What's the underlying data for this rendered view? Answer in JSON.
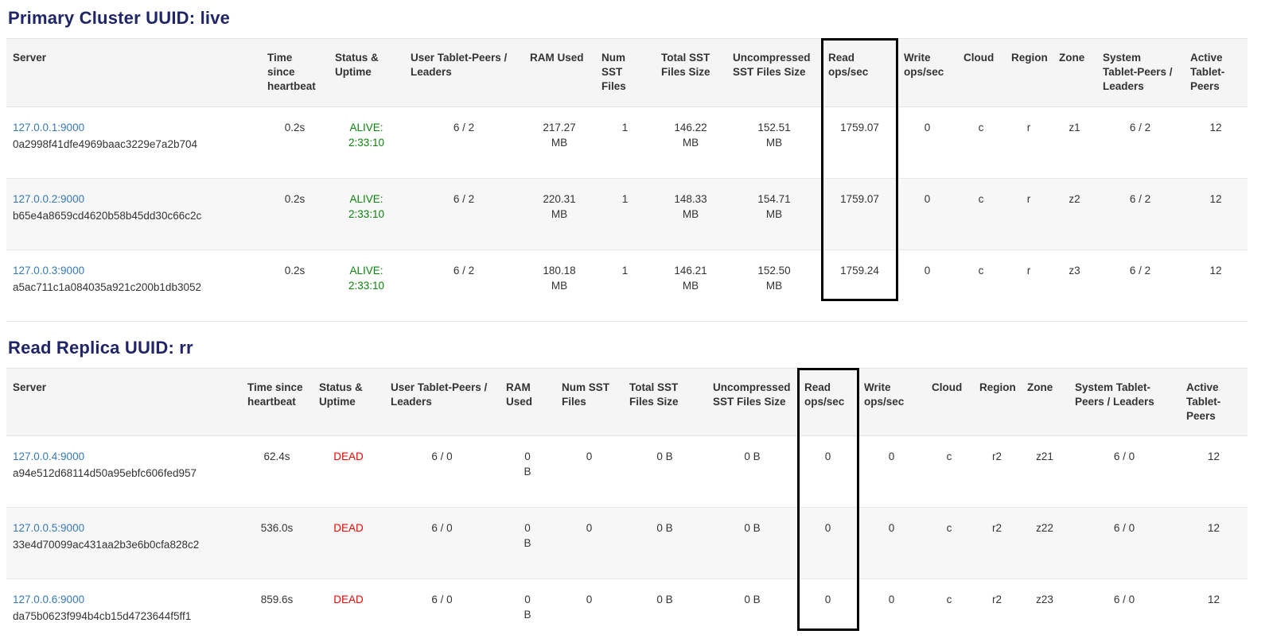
{
  "colors": {
    "title": "#1f2566",
    "link": "#3579b8",
    "alive": "#0a840a",
    "dead": "#ff0000",
    "highlight_border": "#000000",
    "header_background": "#f5f5f5",
    "stripe_background": "#f7f7f7"
  },
  "tables": [
    {
      "title": "Primary Cluster UUID: live",
      "highlighted_column": "Read ops/sec",
      "headers": [
        "Server",
        "Time since heartbeat",
        "Status & Uptime",
        "User Tablet-Peers / Leaders",
        "RAM Used",
        "Num SST Files",
        "Total SST Files Size",
        "Uncompressed SST Files Size",
        "Read ops/sec",
        "Write ops/sec",
        "Cloud",
        "Region",
        "Zone",
        "System Tablet-Peers / Leaders",
        "Active Tablet-Peers"
      ],
      "rows": [
        {
          "server": "127.0.0.1:9000",
          "uuid": "0a2998f41dfe4969baac3229e7a2b704",
          "status": "alive",
          "cells": [
            "0.2s",
            "ALIVE:\n2:33:10",
            "6 / 2",
            "217.27\nMB",
            "1",
            "146.22\nMB",
            "152.51\nMB",
            "1759.07",
            "0",
            "c",
            "r",
            "z1",
            "6 / 2",
            "12"
          ]
        },
        {
          "server": "127.0.0.2:9000",
          "uuid": "b65e4a8659cd4620b58b45dd30c66c2c",
          "status": "alive",
          "cells": [
            "0.2s",
            "ALIVE:\n2:33:10",
            "6 / 2",
            "220.31\nMB",
            "1",
            "148.33\nMB",
            "154.71\nMB",
            "1759.07",
            "0",
            "c",
            "r",
            "z2",
            "6 / 2",
            "12"
          ]
        },
        {
          "server": "127.0.0.3:9000",
          "uuid": "a5ac711c1a084035a921c200b1db3052",
          "status": "alive",
          "cells": [
            "0.2s",
            "ALIVE:\n2:33:10",
            "6 / 2",
            "180.18\nMB",
            "1",
            "146.21\nMB",
            "152.50\nMB",
            "1759.24",
            "0",
            "c",
            "r",
            "z3",
            "6 / 2",
            "12"
          ]
        }
      ]
    },
    {
      "title": "Read Replica UUID: rr",
      "highlighted_column": "Read ops/sec",
      "headers": [
        "Server",
        "Time since heartbeat",
        "Status & Uptime",
        "User Tablet-Peers / Leaders",
        "RAM Used",
        "Num SST Files",
        "Total SST Files Size",
        "Uncompressed SST Files Size",
        "Read ops/sec",
        "Write ops/sec",
        "Cloud",
        "Region",
        "Zone",
        "System Tablet-Peers / Leaders",
        "Active Tablet-Peers"
      ],
      "rows": [
        {
          "server": "127.0.0.4:9000",
          "uuid": "a94e512d68114d50a95ebfc606fed957",
          "status": "dead",
          "cells": [
            "62.4s",
            "DEAD",
            "6 / 0",
            "0\nB",
            "0",
            "0 B",
            "0 B",
            "0",
            "0",
            "c",
            "r2",
            "z21",
            "6 / 0",
            "12"
          ]
        },
        {
          "server": "127.0.0.5:9000",
          "uuid": "33e4d70099ac431aa2b3e6b0cfa828c2",
          "status": "dead",
          "cells": [
            "536.0s",
            "DEAD",
            "6 / 0",
            "0\nB",
            "0",
            "0 B",
            "0 B",
            "0",
            "0",
            "c",
            "r2",
            "z22",
            "6 / 0",
            "12"
          ]
        },
        {
          "server": "127.0.0.6:9000",
          "uuid": "da75b0623f994b4cb15d4723644f5ff1",
          "status": "dead",
          "cells": [
            "859.6s",
            "DEAD",
            "6 / 0",
            "0\nB",
            "0",
            "0 B",
            "0 B",
            "0",
            "0",
            "c",
            "r2",
            "z23",
            "6 / 0",
            "12"
          ]
        }
      ]
    }
  ]
}
